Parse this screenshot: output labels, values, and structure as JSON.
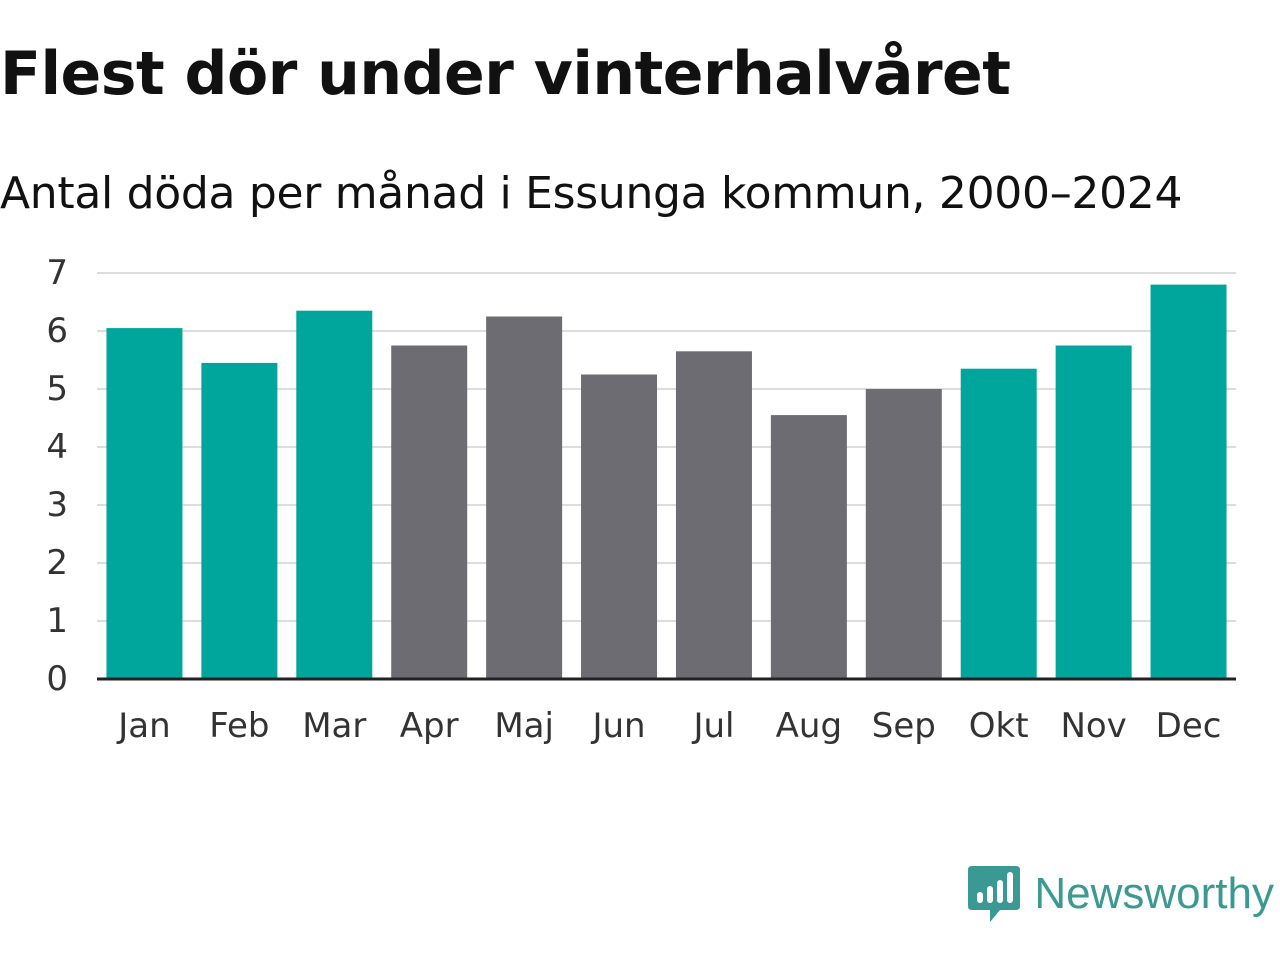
{
  "chart_data": {
    "type": "bar",
    "title": "Flest dör under vinterhalvåret",
    "subtitle": "Antal döda per månad i Essunga kommun, 2000–2024",
    "categories": [
      "Jan",
      "Feb",
      "Mar",
      "Apr",
      "Maj",
      "Jun",
      "Jul",
      "Aug",
      "Sep",
      "Okt",
      "Nov",
      "Dec"
    ],
    "values": [
      6.05,
      5.45,
      6.35,
      5.75,
      6.25,
      5.25,
      5.65,
      4.55,
      5.0,
      5.35,
      5.75,
      6.8
    ],
    "winter": [
      true,
      true,
      true,
      false,
      false,
      false,
      false,
      false,
      false,
      true,
      true,
      true
    ],
    "yticks": [
      0,
      1,
      2,
      3,
      4,
      5,
      6,
      7
    ],
    "ylim": [
      0,
      7
    ],
    "xlabel": "",
    "ylabel": "",
    "grid": true,
    "colors": {
      "winter": "#00a69c",
      "summer": "#6d6c72",
      "grid": "#dddddd",
      "axis": "#222222"
    }
  },
  "brand": {
    "name": "Newsworthy",
    "color": "#3a9a93"
  }
}
